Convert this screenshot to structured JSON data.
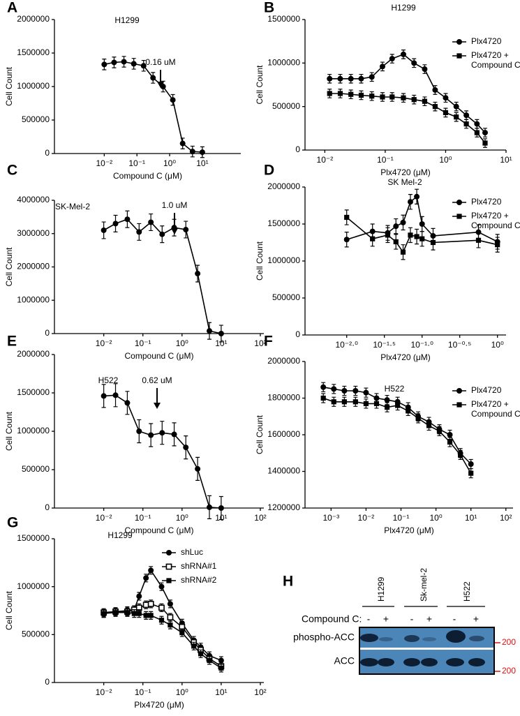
{
  "chart_data": [
    {
      "panel": "A",
      "type": "line",
      "title": "H1299",
      "annotation": "0.16 uM",
      "xlabel": "Compound C (μM)",
      "ylabel": "Cell Count",
      "xlog": true,
      "xlim": [
        0.0003,
        150
      ],
      "xticks": [
        {
          "value": 0.01,
          "label": "10⁻²"
        },
        {
          "value": 0.1,
          "label": "10⁻¹"
        },
        {
          "value": 1,
          "label": "10⁰"
        },
        {
          "value": 10,
          "label": "10¹"
        }
      ],
      "ylim": [
        0,
        2000000
      ],
      "yticks": [
        0,
        500000,
        1000000,
        1500000,
        2000000
      ],
      "x": [
        0.01,
        0.02,
        0.04,
        0.08,
        0.16,
        0.31,
        0.63,
        1.25,
        2.5,
        5,
        10
      ],
      "series": [
        {
          "marker": "circle",
          "color": "#000000",
          "error": 80000,
          "values": [
            1330000,
            1360000,
            1370000,
            1340000,
            1310000,
            1130000,
            1000000,
            800000,
            150000,
            30000,
            20000
          ]
        }
      ]
    },
    {
      "panel": "B",
      "type": "line",
      "title": "H1299",
      "xlabel": "Plx4720 (μM)",
      "ylabel": "Cell Count",
      "xlog": true,
      "xlim": [
        0.0047,
        10
      ],
      "xticks": [
        {
          "value": 0.01,
          "label": "10⁻²"
        },
        {
          "value": 0.1,
          "label": "10⁻¹"
        },
        {
          "value": 1,
          "label": "10⁰"
        },
        {
          "value": 10,
          "label": "10¹"
        }
      ],
      "ylim": [
        0,
        1500000
      ],
      "yticks": [
        0,
        500000,
        1000000,
        1500000
      ],
      "x": [
        0.012,
        0.018,
        0.027,
        0.04,
        0.06,
        0.09,
        0.13,
        0.2,
        0.3,
        0.45,
        0.67,
        1,
        1.5,
        2.2,
        3.3,
        4.5
      ],
      "series": [
        {
          "name": "Plx4720",
          "marker": "circle",
          "color": "#000000",
          "error": 50000,
          "values": [
            820000,
            820000,
            820000,
            820000,
            840000,
            960000,
            1050000,
            1100000,
            1000000,
            930000,
            690000,
            600000,
            500000,
            400000,
            300000,
            200000
          ]
        },
        {
          "name": "Plx4720 + Compound C",
          "marker": "square",
          "color": "#000000",
          "error": 50000,
          "values": [
            650000,
            650000,
            640000,
            630000,
            620000,
            610000,
            610000,
            600000,
            580000,
            560000,
            500000,
            430000,
            380000,
            300000,
            200000,
            80000
          ]
        }
      ]
    },
    {
      "panel": "C",
      "type": "line",
      "title": "SK-Mel-2",
      "annotation": "1.0 uM",
      "xlabel": "Compound C (μM)",
      "ylabel": "Cell Count",
      "xlog": true,
      "xlim": [
        0.00055,
        123
      ],
      "xticks": [
        {
          "value": 0.01,
          "label": "10⁻²"
        },
        {
          "value": 0.1,
          "label": "10⁻¹"
        },
        {
          "value": 1,
          "label": "10⁰"
        },
        {
          "value": 10,
          "label": "10¹"
        },
        {
          "value": 100,
          "label": "10²"
        }
      ],
      "ylim": [
        0,
        4000000
      ],
      "yticks": [
        0,
        1000000,
        2000000,
        3000000,
        4000000
      ],
      "x": [
        0.01,
        0.02,
        0.04,
        0.08,
        0.16,
        0.31,
        0.63,
        1.25,
        2.5,
        5,
        10
      ],
      "series": [
        {
          "marker": "circle",
          "color": "#000000",
          "error": 250000,
          "values": [
            3100000,
            3300000,
            3430000,
            3050000,
            3340000,
            2980000,
            3180000,
            3120000,
            1800000,
            80000,
            0
          ]
        }
      ]
    },
    {
      "panel": "D",
      "type": "line",
      "title": "SK Mel-2",
      "xlabel": "Plx4720 (μM)",
      "ylabel": "Cell Count",
      "xlog": true,
      "xlim": [
        0.0028,
        1.3
      ],
      "xticks": [
        {
          "value": 0.01,
          "label": "10⁻²·⁰"
        },
        {
          "value": 0.0316,
          "label": "10⁻¹·⁵"
        },
        {
          "value": 0.1,
          "label": "10⁻¹·⁰"
        },
        {
          "value": 0.316,
          "label": "10⁻⁰·⁵"
        },
        {
          "value": 1,
          "label": "10⁰"
        }
      ],
      "ylim": [
        0,
        2000000
      ],
      "yticks": [
        0,
        500000,
        1000000,
        1500000,
        2000000
      ],
      "x": [
        0.01,
        0.022,
        0.035,
        0.045,
        0.056,
        0.07,
        0.085,
        0.1,
        0.14,
        0.56,
        1
      ],
      "series": [
        {
          "name": "Plx4720",
          "marker": "circle",
          "color": "#000000",
          "error": 100000,
          "values": [
            1290000,
            1400000,
            1380000,
            1470000,
            1520000,
            1800000,
            1870000,
            1500000,
            1340000,
            1390000,
            1260000
          ]
        },
        {
          "name": "Plx4720 + Compound C",
          "marker": "square",
          "color": "#000000",
          "error": 100000,
          "values": [
            1590000,
            1300000,
            1350000,
            1260000,
            1120000,
            1350000,
            1330000,
            1300000,
            1250000,
            1280000,
            1220000
          ]
        }
      ]
    },
    {
      "panel": "E",
      "type": "line",
      "title": "H522",
      "annotation": "0.62 uM",
      "xlabel": "Compound C (μM)",
      "ylabel": "Cell Count",
      "xlog": true,
      "xlim": [
        0.00055,
        123
      ],
      "xticks": [
        {
          "value": 0.01,
          "label": "10⁻²"
        },
        {
          "value": 0.1,
          "label": "10⁻¹"
        },
        {
          "value": 1,
          "label": "10⁰"
        },
        {
          "value": 10,
          "label": "10¹"
        },
        {
          "value": 100,
          "label": "10²"
        }
      ],
      "ylim": [
        0,
        2000000
      ],
      "yticks": [
        0,
        500000,
        1000000,
        1500000,
        2000000
      ],
      "x": [
        0.01,
        0.02,
        0.04,
        0.08,
        0.16,
        0.31,
        0.63,
        1.25,
        2.5,
        5,
        10
      ],
      "series": [
        {
          "marker": "circle",
          "color": "#000000",
          "error": 150000,
          "values": [
            1460000,
            1470000,
            1370000,
            1000000,
            950000,
            980000,
            960000,
            790000,
            510000,
            10000,
            0
          ]
        }
      ]
    },
    {
      "panel": "F",
      "type": "line",
      "title": "H522",
      "xlabel": "Plx4720 (μM)",
      "ylabel": "Cell Count",
      "xlog": true,
      "xlim": [
        0.00018,
        160
      ],
      "xticks": [
        {
          "value": 0.001,
          "label": "10⁻³"
        },
        {
          "value": 0.01,
          "label": "10⁻²"
        },
        {
          "value": 0.1,
          "label": "10⁻¹"
        },
        {
          "value": 1,
          "label": "10⁰"
        },
        {
          "value": 10,
          "label": "10¹"
        },
        {
          "value": 100,
          "label": "10²"
        }
      ],
      "ylim": [
        1200000,
        2000000
      ],
      "yticks": [
        1200000,
        1400000,
        1600000,
        1800000,
        2000000
      ],
      "x": [
        0.0006,
        0.0012,
        0.0024,
        0.005,
        0.01,
        0.02,
        0.04,
        0.08,
        0.16,
        0.31,
        0.63,
        1.25,
        2.5,
        5,
        10
      ],
      "series": [
        {
          "name": "Plx4720",
          "marker": "circle",
          "color": "#000000",
          "error": 25000,
          "values": [
            1860000,
            1850000,
            1840000,
            1840000,
            1830000,
            1800000,
            1790000,
            1780000,
            1750000,
            1700000,
            1670000,
            1630000,
            1600000,
            1500000,
            1440000
          ]
        },
        {
          "name": "Plx4720 + Compound C",
          "marker": "square",
          "color": "#000000",
          "error": 25000,
          "values": [
            1800000,
            1780000,
            1780000,
            1780000,
            1770000,
            1770000,
            1750000,
            1760000,
            1730000,
            1690000,
            1650000,
            1620000,
            1560000,
            1490000,
            1390000
          ]
        }
      ]
    },
    {
      "panel": "G",
      "type": "line",
      "title": "H1299",
      "xlabel": "Plx4720 (μM)",
      "ylabel": "Cell Count",
      "xlog": true,
      "xlim": [
        0.00055,
        123
      ],
      "xticks": [
        {
          "value": 0.01,
          "label": "10⁻²"
        },
        {
          "value": 0.1,
          "label": "10⁻¹"
        },
        {
          "value": 1,
          "label": "10⁰"
        },
        {
          "value": 10,
          "label": "10¹"
        },
        {
          "value": 100,
          "label": "10²"
        }
      ],
      "ylim": [
        0,
        1500000
      ],
      "yticks": [
        0,
        500000,
        1000000,
        1500000
      ],
      "x": [
        0.01,
        0.02,
        0.04,
        0.06,
        0.08,
        0.12,
        0.16,
        0.3,
        0.5,
        1,
        2,
        3,
        5,
        10
      ],
      "series": [
        {
          "name": "shLuc",
          "marker": "circle",
          "color": "#000000",
          "error": 40000,
          "values": [
            720000,
            740000,
            750000,
            760000,
            900000,
            1090000,
            1170000,
            1000000,
            820000,
            620000,
            440000,
            370000,
            280000,
            230000
          ]
        },
        {
          "name": "shRNA#1",
          "marker": "square-open",
          "color": "#000000",
          "error": 40000,
          "values": [
            730000,
            740000,
            740000,
            760000,
            780000,
            810000,
            820000,
            780000,
            680000,
            580000,
            420000,
            340000,
            250000,
            170000
          ]
        },
        {
          "name": "shRNA#2",
          "marker": "square",
          "color": "#000000",
          "error": 40000,
          "values": [
            720000,
            730000,
            730000,
            720000,
            720000,
            700000,
            700000,
            650000,
            600000,
            520000,
            380000,
            300000,
            230000,
            150000
          ]
        }
      ]
    }
  ],
  "blot": {
    "panel": "H",
    "lanes": [
      "H1299",
      "Sk-mel-2",
      "H522"
    ],
    "treatment_label": "Compound C:",
    "treatment": [
      "-",
      "+",
      "-",
      "+",
      "-",
      "+"
    ],
    "rows": [
      "phospho-ACC",
      "ACC"
    ],
    "size_markers": [
      "200",
      "200"
    ],
    "marker_color": "#e01010"
  }
}
